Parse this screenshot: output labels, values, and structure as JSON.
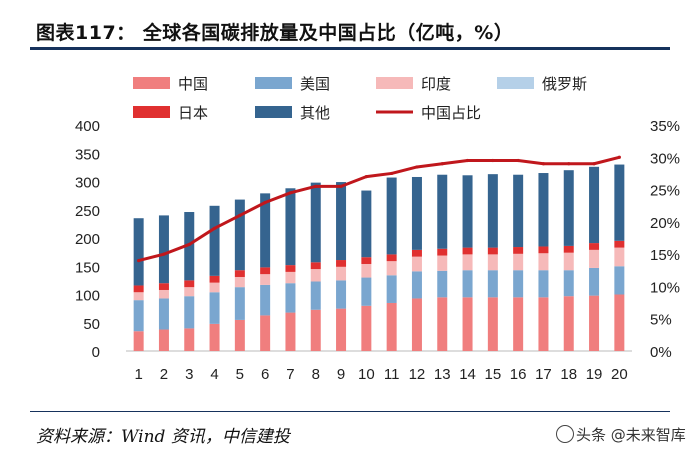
{
  "title": "图表117：  全球各国碳排放量及中国占比（亿吨，%）",
  "source": "资料来源：Wind 资讯，中信建投",
  "watermark": "头条 @未来智库",
  "chart_data": {
    "type": "bar",
    "stacked": true,
    "categories": [
      "1",
      "2",
      "3",
      "4",
      "5",
      "6",
      "7",
      "8",
      "9",
      "10",
      "11",
      "12",
      "13",
      "14",
      "15",
      "16",
      "17",
      "18",
      "19",
      "20"
    ],
    "series": [
      {
        "name": "中国",
        "color": "#f07e7e",
        "values": [
          35,
          38,
          40,
          48,
          55,
          63,
          68,
          73,
          75,
          80,
          85,
          93,
          95,
          95,
          95,
          95,
          95,
          97,
          98,
          100
        ]
      },
      {
        "name": "美国",
        "color": "#7aa6cf",
        "values": [
          55,
          55,
          57,
          56,
          58,
          54,
          52,
          50,
          50,
          50,
          49,
          48,
          47,
          48,
          48,
          48,
          48,
          46,
          49,
          50
        ]
      },
      {
        "name": "印度",
        "color": "#f6b9b9",
        "values": [
          14,
          15,
          16,
          17,
          18,
          19,
          20,
          22,
          24,
          24,
          25,
          26,
          27,
          28,
          28,
          29,
          30,
          31,
          32,
          33
        ]
      },
      {
        "name": "俄罗斯",
        "color": "#b5d0e8",
        "values": [
          0,
          0,
          0,
          0,
          0,
          0,
          0,
          0,
          0,
          0,
          0,
          0,
          0,
          0,
          0,
          0,
          0,
          0,
          0,
          0
        ]
      },
      {
        "name": "日本",
        "color": "#e03030",
        "values": [
          12,
          12,
          12,
          12,
          12,
          12,
          12,
          12,
          12,
          12,
          12,
          12,
          12,
          12,
          12,
          12,
          12,
          12,
          12,
          12
        ]
      },
      {
        "name": "其他",
        "color": "#35648f",
        "values": [
          119,
          120,
          121,
          124,
          125,
          131,
          136,
          141,
          138,
          118,
          136,
          129,
          131,
          128,
          130,
          128,
          130,
          134,
          135,
          135
        ]
      }
    ],
    "line": {
      "name": "中国占比",
      "color": "#c0171c",
      "values": [
        14,
        15,
        16.5,
        19,
        21,
        23,
        24.5,
        25.5,
        25.5,
        27,
        27.5,
        28.5,
        29,
        29.5,
        29.5,
        29.5,
        29,
        29,
        29,
        30
      ]
    },
    "y_left": {
      "min": 0,
      "max": 400,
      "ticks": [
        "0",
        "50",
        "100",
        "150",
        "200",
        "250",
        "300",
        "350",
        "400"
      ]
    },
    "y_right": {
      "min": 0,
      "max": 35,
      "ticks": [
        "0%",
        "5%",
        "10%",
        "15%",
        "20%",
        "25%",
        "30%",
        "35%"
      ]
    },
    "legend_position": "top"
  }
}
